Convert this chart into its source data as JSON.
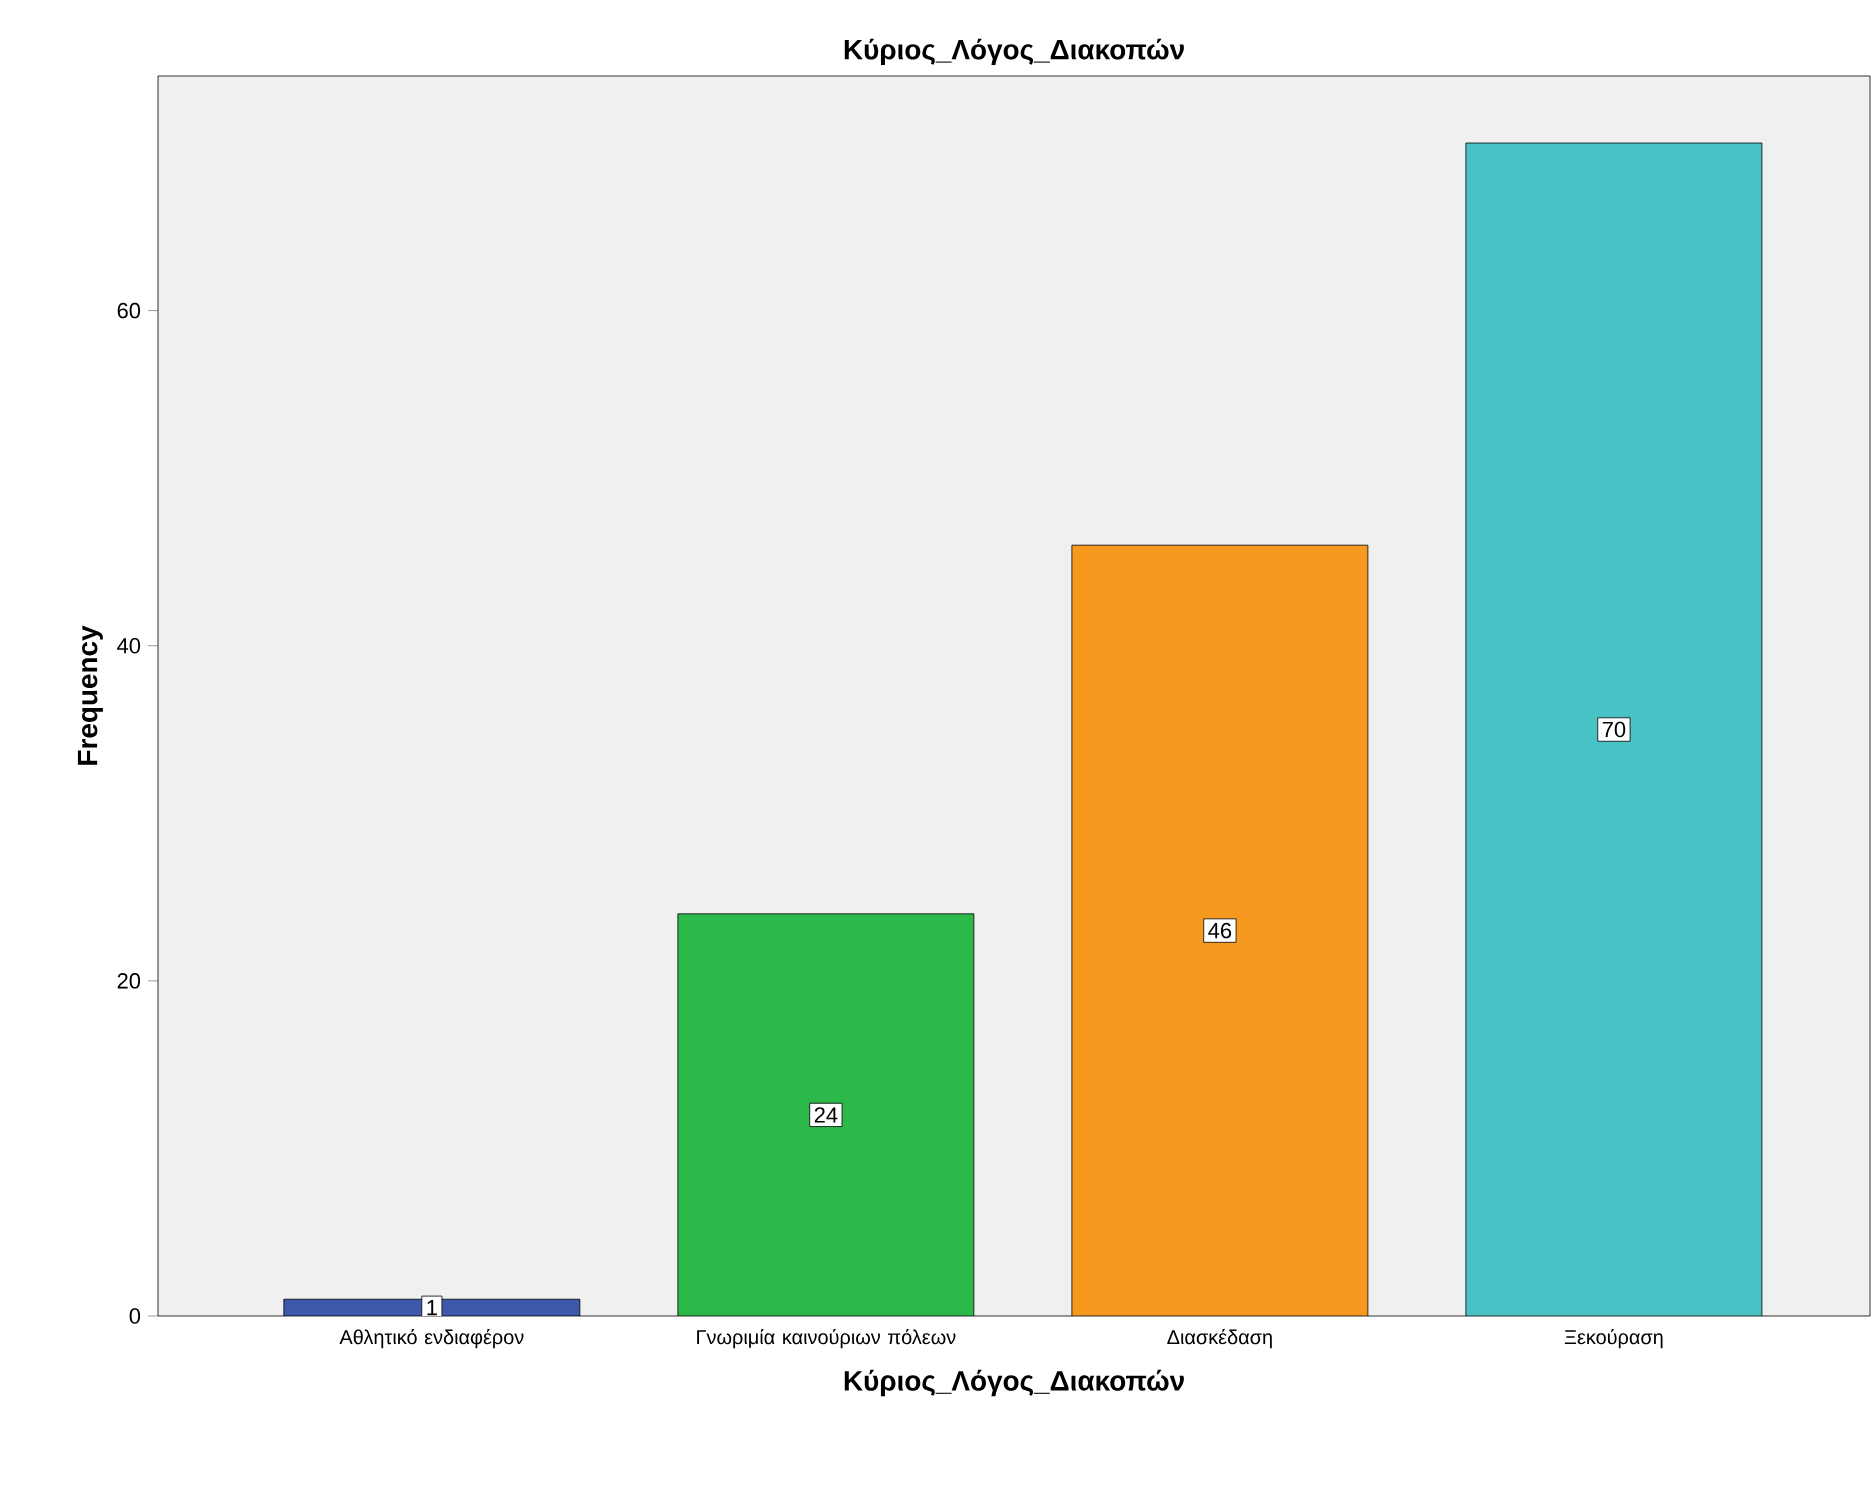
{
  "chart_data": {
    "type": "bar",
    "title": "Κύριος_Λόγος_Διακοπών",
    "xlabel": "Κύριος_Λόγος_Διακοπών",
    "ylabel": "Frequency",
    "categories": [
      "Αθλητικό ενδιαφέρον",
      "Γνωριμία καινούριων πόλεων",
      "Διασκέδαση",
      "Ξεκούραση"
    ],
    "values": [
      1,
      24,
      46,
      70
    ],
    "colors": [
      "#3e58ac",
      "#2db84a",
      "#f7991e",
      "#48c2c5"
    ],
    "ylim": [
      0,
      74
    ],
    "yticks": [
      0,
      20,
      40,
      60
    ],
    "grid": false,
    "data_labels": true
  }
}
